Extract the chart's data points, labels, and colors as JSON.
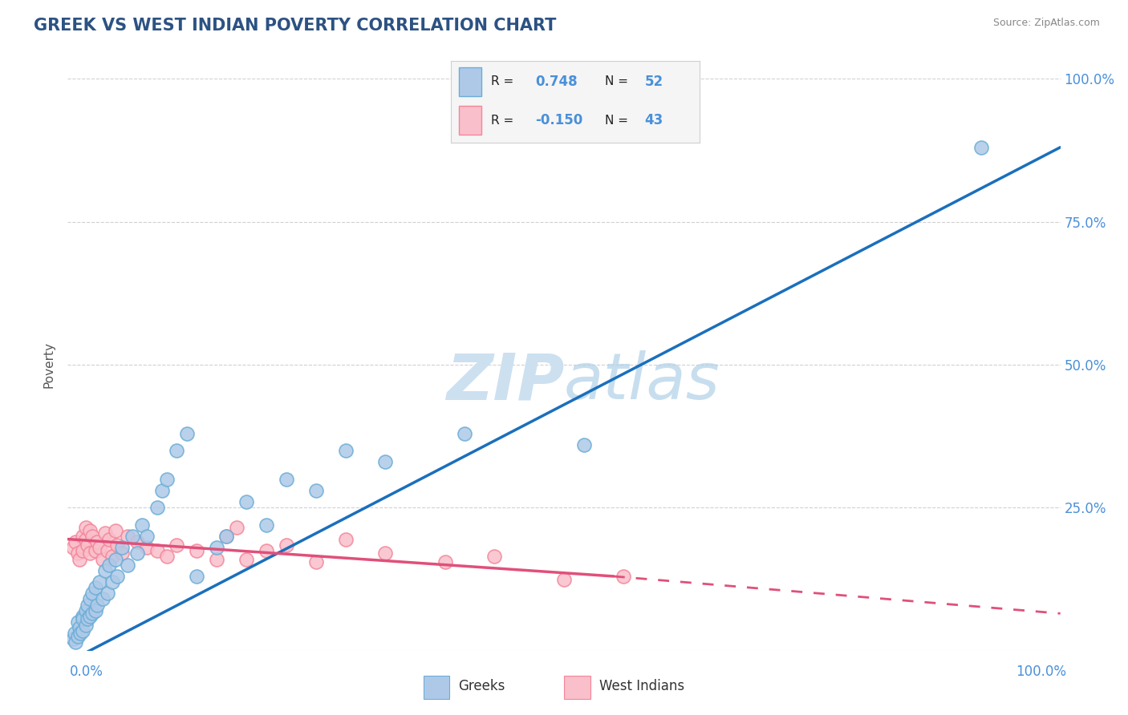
{
  "title": "GREEK VS WEST INDIAN POVERTY CORRELATION CHART",
  "source": "Source: ZipAtlas.com",
  "ylabel": "Poverty",
  "greek_color": "#6baed6",
  "greek_color_fill": "#aec9e8",
  "west_indian_color": "#f4869a",
  "west_indian_color_fill": "#f9bfca",
  "R_greek": 0.748,
  "N_greek": 52,
  "R_west_indian": -0.15,
  "N_west_indian": 43,
  "greek_scatter_x": [
    0.005,
    0.007,
    0.008,
    0.01,
    0.01,
    0.012,
    0.013,
    0.015,
    0.015,
    0.015,
    0.018,
    0.018,
    0.02,
    0.02,
    0.022,
    0.022,
    0.025,
    0.025,
    0.028,
    0.028,
    0.03,
    0.032,
    0.035,
    0.038,
    0.04,
    0.042,
    0.045,
    0.048,
    0.05,
    0.055,
    0.06,
    0.065,
    0.07,
    0.075,
    0.08,
    0.09,
    0.095,
    0.1,
    0.11,
    0.12,
    0.13,
    0.15,
    0.16,
    0.18,
    0.2,
    0.22,
    0.25,
    0.28,
    0.32,
    0.4,
    0.52,
    0.92
  ],
  "greek_scatter_y": [
    0.02,
    0.03,
    0.015,
    0.025,
    0.05,
    0.04,
    0.03,
    0.06,
    0.035,
    0.055,
    0.045,
    0.07,
    0.055,
    0.08,
    0.06,
    0.09,
    0.065,
    0.1,
    0.07,
    0.11,
    0.08,
    0.12,
    0.09,
    0.14,
    0.1,
    0.15,
    0.12,
    0.16,
    0.13,
    0.18,
    0.15,
    0.2,
    0.17,
    0.22,
    0.2,
    0.25,
    0.28,
    0.3,
    0.35,
    0.38,
    0.13,
    0.18,
    0.2,
    0.26,
    0.22,
    0.3,
    0.28,
    0.35,
    0.33,
    0.38,
    0.36,
    0.88
  ],
  "west_indian_scatter_x": [
    0.005,
    0.008,
    0.01,
    0.012,
    0.015,
    0.015,
    0.018,
    0.018,
    0.02,
    0.022,
    0.022,
    0.025,
    0.028,
    0.03,
    0.032,
    0.035,
    0.038,
    0.04,
    0.042,
    0.045,
    0.048,
    0.05,
    0.055,
    0.06,
    0.07,
    0.08,
    0.09,
    0.1,
    0.11,
    0.13,
    0.15,
    0.16,
    0.17,
    0.18,
    0.2,
    0.22,
    0.25,
    0.28,
    0.32,
    0.38,
    0.43,
    0.5,
    0.56
  ],
  "west_indian_scatter_y": [
    0.18,
    0.19,
    0.17,
    0.16,
    0.2,
    0.175,
    0.195,
    0.215,
    0.185,
    0.17,
    0.21,
    0.2,
    0.175,
    0.19,
    0.18,
    0.16,
    0.205,
    0.175,
    0.195,
    0.165,
    0.21,
    0.185,
    0.17,
    0.2,
    0.19,
    0.18,
    0.175,
    0.165,
    0.185,
    0.175,
    0.16,
    0.2,
    0.215,
    0.16,
    0.175,
    0.185,
    0.155,
    0.195,
    0.17,
    0.155,
    0.165,
    0.125,
    0.13
  ],
  "background_color": "#ffffff",
  "grid_color": "#cccccc",
  "title_color": "#2c5282",
  "axis_label_color": "#4a90d9",
  "watermark_color": "#cce0f0",
  "ytick_values": [
    0.0,
    0.25,
    0.5,
    0.75,
    1.0
  ],
  "ytick_labels": [
    "",
    "25.0%",
    "50.0%",
    "75.0%",
    "100.0%"
  ],
  "xlim": [
    0.0,
    1.0
  ],
  "ylim": [
    0.0,
    1.0
  ]
}
